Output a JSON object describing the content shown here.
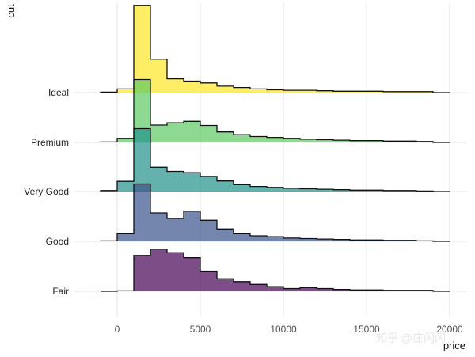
{
  "chart_data": {
    "type": "ridgeline-histogram",
    "title": "",
    "xlabel": "price",
    "ylabel": "cut",
    "xlim": [
      -1500,
      20500
    ],
    "x_ticks": [
      0,
      5000,
      10000,
      15000,
      20000
    ],
    "x_tick_labels": [
      "0",
      "5000",
      "10000",
      "15000",
      "20000"
    ],
    "bin_edges": [
      -1000,
      0,
      1000,
      2000,
      3000,
      4000,
      5000,
      6000,
      7000,
      8000,
      9000,
      10000,
      11000,
      12000,
      13000,
      14000,
      15000,
      16000,
      17000,
      18000,
      19000,
      20000
    ],
    "series": [
      {
        "name": "Fair",
        "color": "#440154",
        "values": [
          0,
          0.01,
          0.78,
          0.92,
          0.84,
          0.73,
          0.44,
          0.27,
          0.21,
          0.15,
          0.1,
          0.06,
          0.08,
          0.06,
          0.04,
          0.03,
          0.03,
          0.02,
          0.02,
          0.02,
          0
        ]
      },
      {
        "name": "Good",
        "color": "#3b528b",
        "values": [
          0.01,
          0.18,
          1.25,
          0.62,
          0.5,
          0.66,
          0.46,
          0.27,
          0.18,
          0.12,
          0.1,
          0.07,
          0.06,
          0.05,
          0.04,
          0.03,
          0.03,
          0.02,
          0.02,
          0.01,
          0
        ]
      },
      {
        "name": "Very Good",
        "color": "#21918c",
        "values": [
          0.02,
          0.22,
          1.37,
          0.53,
          0.44,
          0.41,
          0.33,
          0.23,
          0.15,
          0.11,
          0.09,
          0.07,
          0.06,
          0.05,
          0.04,
          0.03,
          0.03,
          0.02,
          0.02,
          0.01,
          0
        ]
      },
      {
        "name": "Premium",
        "color": "#5ec962",
        "values": [
          0.01,
          0.09,
          1.37,
          0.38,
          0.43,
          0.46,
          0.37,
          0.23,
          0.17,
          0.13,
          0.11,
          0.09,
          0.07,
          0.06,
          0.05,
          0.04,
          0.04,
          0.03,
          0.03,
          0.02,
          0
        ]
      },
      {
        "name": "Ideal",
        "color": "#fde725",
        "values": [
          0.01,
          0.08,
          1.9,
          0.73,
          0.3,
          0.25,
          0.21,
          0.14,
          0.11,
          0.08,
          0.06,
          0.05,
          0.05,
          0.04,
          0.03,
          0.03,
          0.03,
          0.02,
          0.02,
          0.02,
          0
        ]
      }
    ],
    "grid": true,
    "fill_opacity": 0.7,
    "legend": "none"
  },
  "watermark": "知乎 @庄闪闪"
}
